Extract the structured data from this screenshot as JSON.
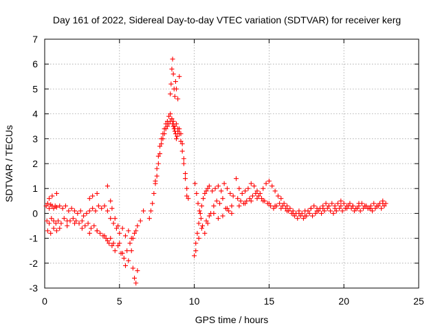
{
  "chart_data": {
    "type": "scatter",
    "title": "Day 161 of 2022, Sidereal Day-to-day VTEC variation (SDTVAR) for receiver kerg",
    "xlabel": "GPS time / hours",
    "ylabel": "SDTVAR / TECUs",
    "xlim": [
      0,
      25
    ],
    "ylim": [
      -3,
      7
    ],
    "xticks": [
      "0",
      "5",
      "10",
      "15",
      "20",
      "25"
    ],
    "yticks": [
      "-3",
      "-2",
      "-1",
      "0",
      "1",
      "2",
      "3",
      "4",
      "5",
      "6",
      "7"
    ],
    "grid": true,
    "marker": "+",
    "color": "#ff0000",
    "series": [
      {
        "name": "SDTVAR",
        "x": [
          0.1,
          0.2,
          0.3,
          0.4,
          0.5,
          0.6,
          0.7,
          0.8,
          1.0,
          1.2,
          1.4,
          1.6,
          1.8,
          2.0,
          2.2,
          2.4,
          2.6,
          2.8,
          3.0,
          3.2,
          3.4,
          3.6,
          3.8,
          4.0,
          4.2,
          4.4,
          4.6,
          4.8,
          5.0,
          5.2,
          5.4,
          5.6,
          5.8,
          6.0,
          6.2,
          6.4,
          6.6,
          0.15,
          0.3,
          0.45,
          0.6,
          0.75,
          0.9,
          1.1,
          1.3,
          1.5,
          1.7,
          1.9,
          2.1,
          2.3,
          2.5,
          2.7,
          2.9,
          3.1,
          3.3,
          3.5,
          3.7,
          3.9,
          4.1,
          4.3,
          4.5,
          4.7,
          4.9,
          5.1,
          5.3,
          5.5,
          5.7,
          5.9,
          6.1,
          0.2,
          0.4,
          0.6,
          0.8,
          1.0,
          1.5,
          2.0,
          2.5,
          3.0,
          3.5,
          4.0,
          4.2,
          4.4,
          4.6,
          0.3,
          0.5,
          0.8,
          3.0,
          3.2,
          3.5,
          4.2,
          4.4,
          4.5,
          4.7,
          4.9,
          5.0,
          5.2,
          5.4,
          5.6,
          5.8,
          5.9,
          6.0,
          6.1,
          6.2,
          7.4,
          7.5,
          7.6,
          7.7,
          7.8,
          7.9,
          8.0,
          8.1,
          8.2,
          8.3,
          8.4,
          8.5,
          8.55,
          8.6,
          8.65,
          8.7,
          8.75,
          8.8,
          8.85,
          8.9,
          9.0,
          9.1,
          9.2,
          9.3,
          9.4,
          9.5,
          9.6,
          8.4,
          8.45,
          8.5,
          8.55,
          8.6,
          8.65,
          8.7,
          8.75,
          8.8,
          8.9,
          9.0,
          7.0,
          7.1,
          7.2,
          7.3,
          7.4,
          7.5,
          7.6,
          7.7,
          7.8,
          7.9,
          8.0,
          8.1,
          8.2,
          8.3,
          8.4,
          8.5,
          8.6,
          8.7,
          8.8,
          8.9,
          9.0,
          9.1,
          9.2,
          9.3,
          9.4,
          9.5,
          10.0,
          10.1,
          10.2,
          10.3,
          10.4,
          10.5,
          10.6,
          10.7,
          10.8,
          10.9,
          11.0,
          11.2,
          11.4,
          11.6,
          11.8,
          12.0,
          12.2,
          12.4,
          12.6,
          10.05,
          10.15,
          10.25,
          10.35,
          10.45,
          10.55,
          10.7,
          10.9,
          11.1,
          11.3,
          11.5,
          11.7,
          11.9,
          12.1,
          12.3,
          12.5,
          10.1,
          10.3,
          10.5,
          10.8,
          11.0,
          11.3,
          11.6,
          11.9,
          12.2,
          12.5,
          12.8,
          13.0,
          13.2,
          13.4,
          13.6,
          13.8,
          14.0,
          14.2,
          14.4,
          14.6,
          14.8,
          15.0,
          15.2,
          15.4,
          15.6,
          15.8,
          16.0,
          16.2,
          16.4,
          16.6,
          16.8,
          17.0,
          17.2,
          17.4,
          17.6,
          17.8,
          18.0,
          18.2,
          18.4,
          18.6,
          18.8,
          19.0,
          19.2,
          19.4,
          19.6,
          19.8,
          20.0,
          20.2,
          20.4,
          20.6,
          20.8,
          21.0,
          21.2,
          21.4,
          21.6,
          21.8,
          22.0,
          22.2,
          22.4,
          22.6,
          22.8,
          12.9,
          13.1,
          13.3,
          13.5,
          13.7,
          13.9,
          14.1,
          14.3,
          14.5,
          14.7,
          14.9,
          15.1,
          15.3,
          15.5,
          15.7,
          15.9,
          16.1,
          16.3,
          16.5,
          16.7,
          16.9,
          17.1,
          17.3,
          17.5,
          17.7,
          17.9,
          18.1,
          18.3,
          18.5,
          18.7,
          18.9,
          19.1,
          19.3,
          19.5,
          19.7,
          19.9,
          20.1,
          20.3,
          20.5,
          20.7,
          20.9,
          21.1,
          21.3,
          21.5,
          21.7,
          21.9,
          22.1,
          22.3,
          22.5,
          22.7,
          13.0,
          13.4,
          13.8,
          14.2,
          14.6,
          15.0,
          15.4,
          15.8,
          16.2,
          16.6,
          17.0,
          17.4,
          17.8,
          18.2,
          18.6,
          19.0,
          19.4,
          19.8,
          20.2,
          20.6,
          21.0,
          21.4,
          21.8,
          22.2,
          22.6
        ],
        "y": [
          0.3,
          0.4,
          0.2,
          0.35,
          0.3,
          0.2,
          0.3,
          0.25,
          0.3,
          0.2,
          0.3,
          0.1,
          0.2,
          0.1,
          0.0,
          0.1,
          -0.1,
          0.0,
          0.1,
          0.2,
          0.1,
          0.3,
          0.2,
          0.3,
          0.1,
          -0.2,
          -0.4,
          -0.6,
          -0.8,
          -0.6,
          -0.9,
          -0.7,
          -1.0,
          -0.8,
          -0.5,
          -0.3,
          0.1,
          -0.3,
          -0.4,
          -0.2,
          -0.3,
          -0.4,
          -0.3,
          -0.4,
          -0.2,
          -0.3,
          -0.3,
          -0.2,
          -0.3,
          -0.4,
          -0.3,
          -0.5,
          -0.4,
          -0.6,
          -0.5,
          -0.7,
          -0.8,
          -0.9,
          -1.0,
          -1.2,
          -1.3,
          -1.5,
          -1.3,
          -1.6,
          -1.8,
          -1.5,
          -1.2,
          -1.0,
          -0.7,
          -0.7,
          -0.8,
          -0.6,
          -0.7,
          -0.6,
          -0.5,
          -0.4,
          -0.6,
          -0.8,
          -0.7,
          -0.9,
          -1.1,
          -1.0,
          -1.2,
          0.6,
          0.7,
          0.8,
          0.6,
          0.7,
          0.8,
          1.1,
          0.5,
          0.2,
          -0.2,
          -0.5,
          -1.2,
          -1.6,
          -2.1,
          -1.9,
          -1.5,
          -2.2,
          -2.6,
          -2.8,
          -2.3,
          1.2,
          1.5,
          2.0,
          2.4,
          2.8,
          3.0,
          3.2,
          3.4,
          3.5,
          3.6,
          3.7,
          3.8,
          3.6,
          3.5,
          3.4,
          3.3,
          3.2,
          3.0,
          3.1,
          3.3,
          3.4,
          3.2,
          2.8,
          2.2,
          1.6,
          1.0,
          0.6,
          4.8,
          5.2,
          5.8,
          6.2,
          5.6,
          5.0,
          4.7,
          5.3,
          5.0,
          4.6,
          5.5,
          -0.2,
          0.1,
          0.4,
          0.8,
          1.3,
          1.8,
          2.3,
          2.7,
          3.0,
          3.2,
          3.4,
          3.6,
          3.7,
          3.9,
          4.0,
          3.8,
          3.7,
          3.5,
          3.6,
          3.4,
          3.2,
          2.9,
          2.5,
          2.0,
          1.4,
          0.7,
          -1.7,
          -1.2,
          -0.8,
          -0.4,
          0.0,
          0.3,
          0.6,
          0.8,
          0.9,
          1.0,
          1.1,
          0.9,
          1.0,
          1.1,
          0.9,
          1.2,
          1.0,
          0.8,
          0.7,
          1.2,
          0.8,
          0.4,
          0.1,
          -0.2,
          -0.5,
          -0.8,
          -0.4,
          0.0,
          0.3,
          0.5,
          0.4,
          0.6,
          0.2,
          0.1,
          0.3,
          -1.5,
          -1.0,
          -0.6,
          -0.3,
          -0.1,
          0.0,
          -0.2,
          -0.1,
          0.2,
          0.0,
          1.4,
          1.0,
          0.8,
          0.9,
          1.0,
          1.2,
          1.1,
          0.9,
          0.8,
          1.0,
          1.2,
          1.3,
          1.1,
          0.9,
          0.7,
          0.6,
          0.4,
          0.3,
          0.2,
          0.1,
          0.0,
          0.1,
          0.0,
          -0.1,
          0.1,
          0.2,
          0.3,
          0.2,
          0.2,
          0.3,
          0.4,
          0.3,
          0.4,
          0.3,
          0.4,
          0.5,
          0.4,
          0.3,
          0.4,
          0.3,
          0.2,
          0.3,
          0.4,
          0.3,
          0.2,
          0.3,
          0.4,
          0.3,
          0.4,
          0.5,
          0.4,
          0.6,
          0.5,
          0.4,
          0.5,
          0.6,
          0.7,
          0.8,
          0.7,
          0.6,
          0.5,
          0.4,
          0.3,
          0.2,
          0.3,
          0.4,
          0.3,
          0.2,
          0.1,
          0.0,
          -0.1,
          -0.2,
          -0.1,
          -0.2,
          -0.1,
          0.0,
          -0.1,
          0.0,
          0.1,
          0.0,
          0.1,
          0.2,
          0.1,
          0.0,
          0.1,
          0.2,
          0.1,
          0.2,
          0.3,
          0.2,
          0.1,
          0.2,
          0.1,
          0.2,
          0.3,
          0.2,
          0.1,
          0.2,
          0.3,
          0.2,
          0.3,
          0.3,
          0.4,
          0.5,
          0.6,
          0.5,
          0.4,
          0.3,
          0.2,
          0.1,
          0.0,
          0.0,
          0.1,
          0.2,
          0.1,
          0.2,
          0.3,
          0.2,
          0.3,
          0.2,
          0.3,
          0.4,
          0.3,
          0.2,
          0.3,
          0.4
        ]
      }
    ]
  }
}
